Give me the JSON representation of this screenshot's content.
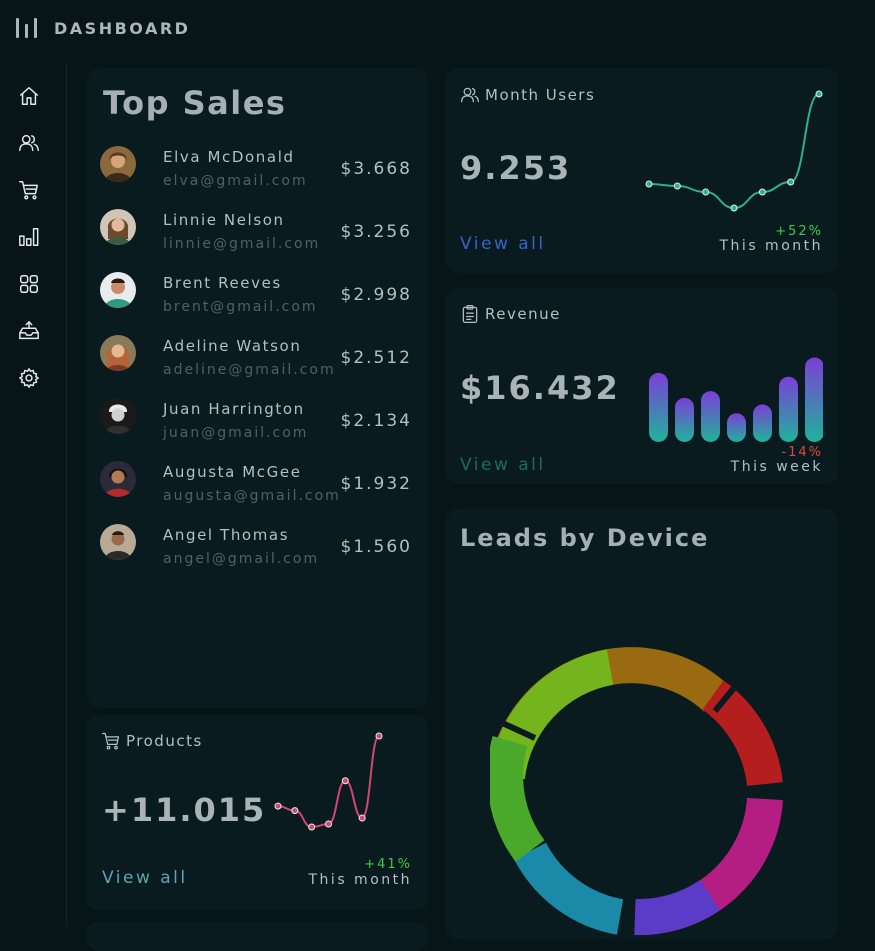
{
  "app": {
    "title": "DASHBOARD"
  },
  "sidebar": {
    "items": [
      {
        "name": "nav-home",
        "icon": "home-icon"
      },
      {
        "name": "nav-users",
        "icon": "users-icon"
      },
      {
        "name": "nav-cart",
        "icon": "cart-icon"
      },
      {
        "name": "nav-analytics",
        "icon": "bar-chart-icon"
      },
      {
        "name": "nav-apps",
        "icon": "grid-icon"
      },
      {
        "name": "nav-inbox",
        "icon": "inbox-icon"
      },
      {
        "name": "nav-settings",
        "icon": "gear-icon"
      }
    ]
  },
  "top_sales": {
    "title": "Top Sales",
    "rows": [
      {
        "name": "Elva McDonald",
        "email": "elva@gmail.com",
        "amount": "$3.668",
        "avatar_color": "#8a6a3c"
      },
      {
        "name": "Linnie Nelson",
        "email": "linnie@gmail.com",
        "amount": "$3.256",
        "avatar_color": "#6d5a4a"
      },
      {
        "name": "Brent Reeves",
        "email": "brent@gmail.com",
        "amount": "$2.998",
        "avatar_color": "#2e9a7f"
      },
      {
        "name": "Adeline Watson",
        "email": "adeline@gmail.com",
        "amount": "$2.512",
        "avatar_color": "#9c5a3a"
      },
      {
        "name": "Juan Harrington",
        "email": "juan@gmail.com",
        "amount": "$2.134",
        "avatar_color": "#3a3a3a"
      },
      {
        "name": "Augusta McGee",
        "email": "augusta@gmail.com",
        "amount": "$1.932",
        "avatar_color": "#8a2b2b"
      },
      {
        "name": "Angel Thomas",
        "email": "angel@gmail.com",
        "amount": "$1.560",
        "avatar_color": "#5a4a3a"
      }
    ]
  },
  "month_users": {
    "label": "Month Users",
    "value": "9.253",
    "view_all": "View all",
    "change": "+52%",
    "period": "This month",
    "sparkline": [
      2.0,
      1.9,
      1.6,
      0.8,
      1.6,
      2.1,
      6.5
    ]
  },
  "revenue": {
    "label": "Revenue",
    "value": "$16.432",
    "view_all": "View all",
    "change": "-14%",
    "period": "This week",
    "bars": [
      72,
      46,
      53,
      30,
      39,
      68,
      88
    ]
  },
  "products": {
    "label": "Products",
    "value": "+11.015",
    "view_all": "View all",
    "change": "+41%",
    "period": "This month",
    "sparkline": [
      2.3,
      2.0,
      0.9,
      1.1,
      4.0,
      1.5,
      7.0
    ]
  },
  "leads": {
    "title": "Leads by Device"
  },
  "colors": {
    "bg": "#071518",
    "card": "#0a1b1f",
    "teal": "#2fae93",
    "pink": "#d2466f",
    "blue_link": "#3466c8",
    "teal_link": "#1c6a63",
    "products_link": "#5ea4b4",
    "positive": "#3cc94a",
    "negative": "#d94a3a"
  }
}
